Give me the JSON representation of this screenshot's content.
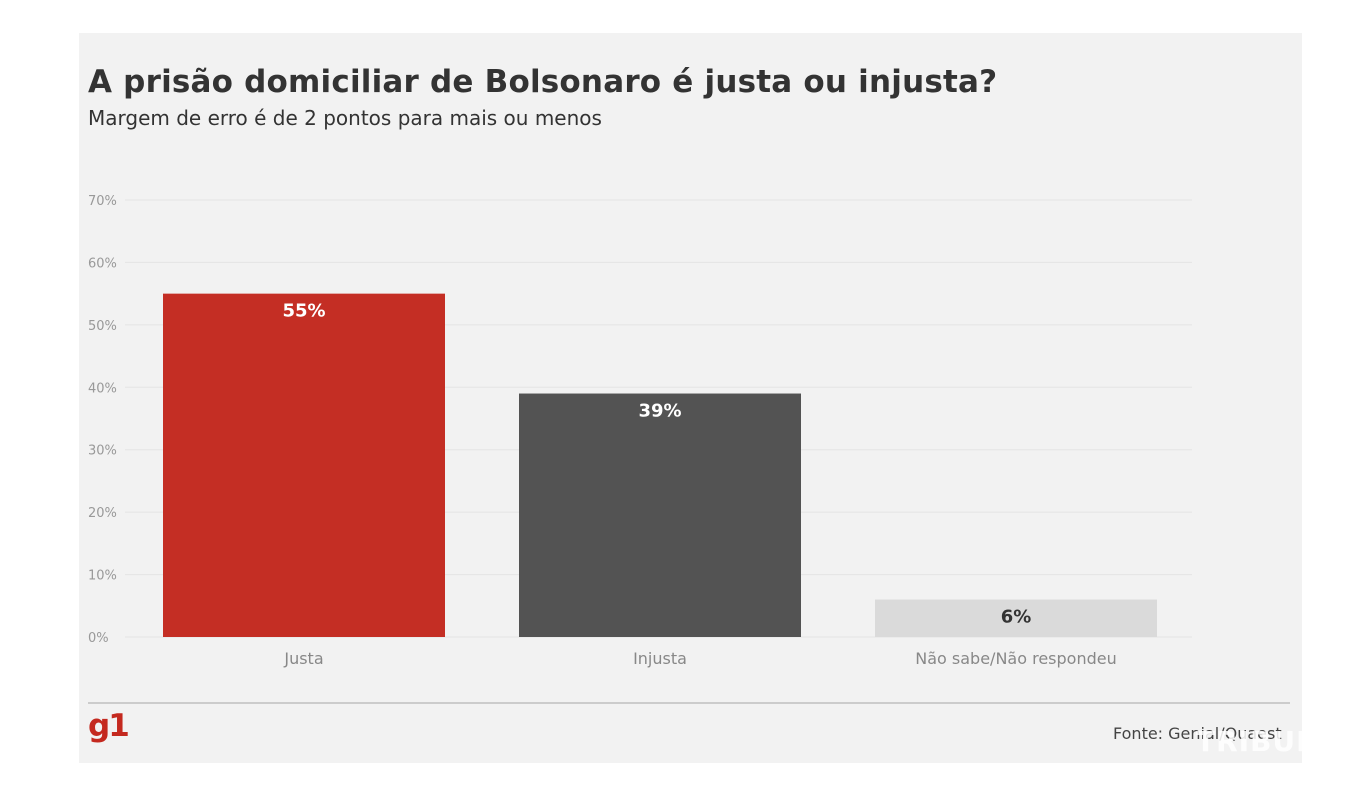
{
  "title": "A prisão domiciliar de Bolsonaro é justa ou injusta?",
  "subtitle": "Margem de erro é de 2 pontos para mais ou menos",
  "source": "Fonte: Genial/Quaest",
  "logo": "g1",
  "watermark": "TRIBUNA",
  "colors": {
    "background": "#f2f2f2",
    "justa": "#c42e24",
    "injusta": "#535353",
    "nao_sabe": "#dadada",
    "logo": "#c4291f"
  },
  "chart_data": {
    "type": "bar",
    "categories": [
      "Justa",
      "Injusta",
      "Não sabe/Não respondeu"
    ],
    "values": [
      55,
      39,
      6
    ],
    "data_labels": [
      "55%",
      "39%",
      "6%"
    ],
    "bar_colors": [
      "#c42e24",
      "#535353",
      "#dadada"
    ],
    "label_colors": [
      "#ffffff",
      "#ffffff",
      "#333333"
    ],
    "ylim": [
      0,
      70
    ],
    "yticks": [
      0,
      10,
      20,
      30,
      40,
      50,
      60,
      70
    ],
    "ytick_labels": [
      "0%",
      "10%",
      "20%",
      "30%",
      "40%",
      "50%",
      "60%",
      "70%"
    ],
    "grid": true,
    "legend": "none"
  }
}
